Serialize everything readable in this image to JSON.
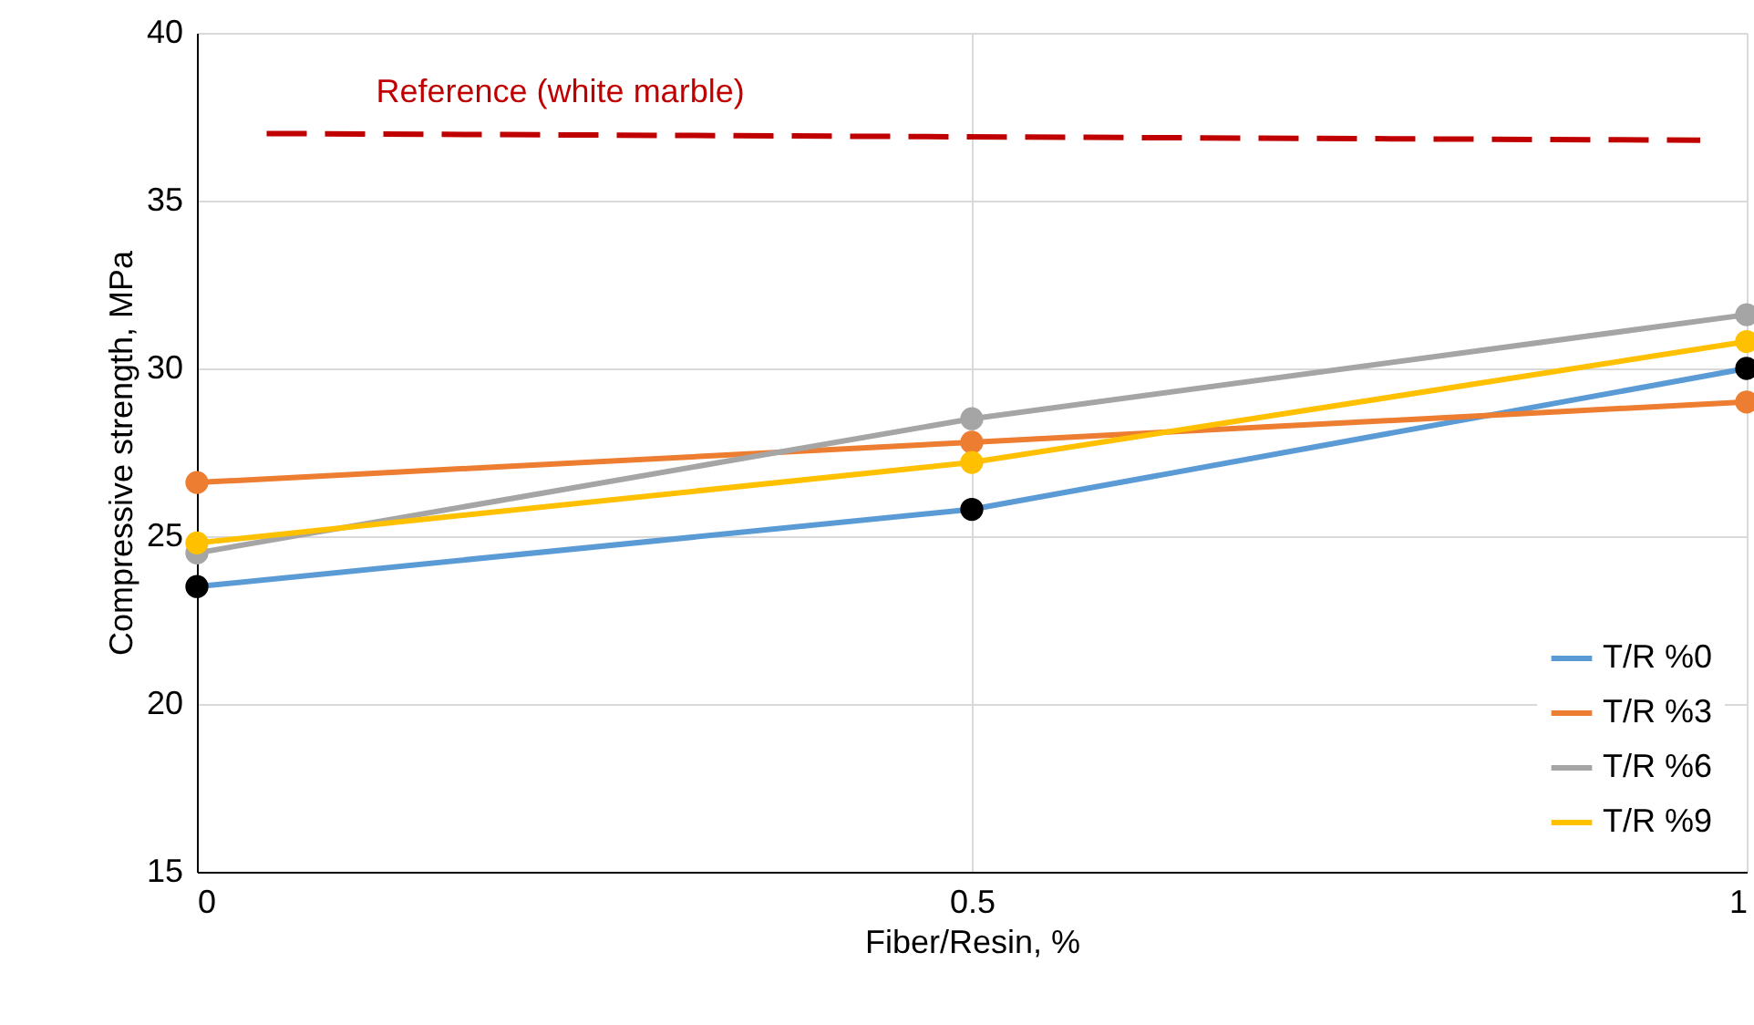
{
  "chart_data": {
    "type": "line",
    "xlabel": "Fiber/Resin, %",
    "ylabel": "Compressive strength, MPa",
    "x": [
      0,
      0.5,
      1
    ],
    "xlim": [
      0,
      1
    ],
    "xticks": [
      0,
      0.5,
      1
    ],
    "ylim": [
      15,
      40
    ],
    "yticks": [
      15,
      20,
      25,
      30,
      35,
      40
    ],
    "grid": true,
    "legend": "bottom right",
    "marker": "circle",
    "line_style": "solid",
    "series": [
      {
        "name": "T/R %0",
        "color": "#5b9bd5",
        "colors": [
          "#000000",
          "#000000",
          "#000000"
        ],
        "values": [
          23.5,
          25.8,
          30.0
        ]
      },
      {
        "name": "T/R %3",
        "color": "#ed7d31",
        "values": [
          26.6,
          27.8,
          29.0
        ]
      },
      {
        "name": "T/R %6",
        "color": "#a5a5a5",
        "values": [
          24.5,
          28.5,
          31.6
        ]
      },
      {
        "name": "T/R %9",
        "color": "#ffc000",
        "values": [
          24.8,
          27.2,
          30.8
        ]
      },
      {
        "name": "Reference (white marble)",
        "color": "#c00000",
        "x": [
          0.045,
          0.97
        ],
        "values": [
          37.0,
          36.8
        ],
        "marker": "none",
        "line_style": "dashed"
      }
    ]
  }
}
